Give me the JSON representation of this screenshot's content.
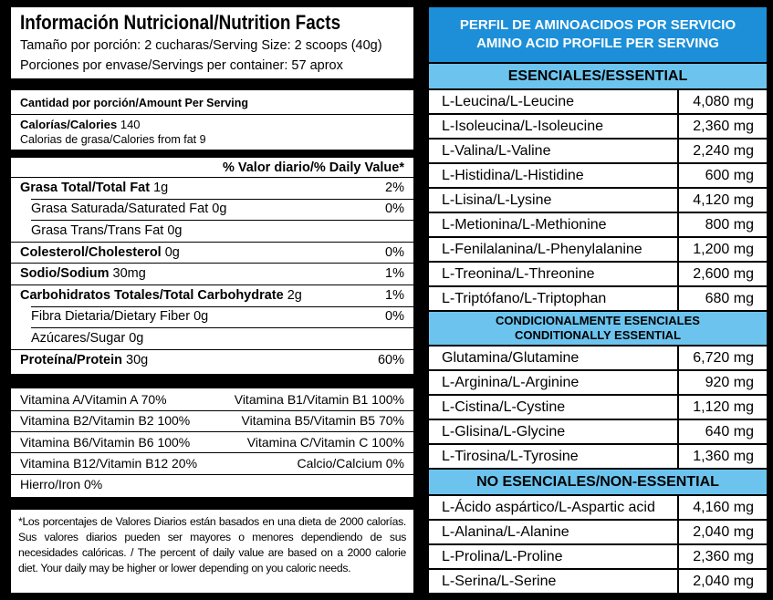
{
  "nutrition_facts": {
    "title": "Información Nutricional/Nutrition Facts",
    "serving_size": "Tamaño por porción: 2 cucharas/Serving Size: 2 scoops (40g)",
    "servings_per_container": "Porciones por envase/Servings per container: 57 aprox",
    "amount_per_serving": "Cantidad por porción/Amount Per Serving",
    "calories": {
      "label": "Calorías/Calories",
      "value": "140"
    },
    "calories_from_fat": "Calorias de grasa/Calories from fat 9",
    "daily_value_header": "% Valor diario/% Daily Value*",
    "nutrients": [
      {
        "label": "Grasa Total/Total Fat",
        "amount": "1g",
        "dv": "2%",
        "sub": [
          {
            "text": "Grasa Saturada/Saturated Fat 0g",
            "dv": "0%"
          },
          {
            "text": "Grasa Trans/Trans Fat 0g"
          }
        ]
      },
      {
        "label": "Colesterol/Cholesterol",
        "amount": "0g",
        "dv": "0%",
        "sub": []
      },
      {
        "label": "Sodio/Sodium",
        "amount": "30mg",
        "dv": "1%",
        "sub": []
      },
      {
        "label": "Carbohidratos Totales/Total Carbohydrate",
        "amount": "2g",
        "dv": "1%",
        "sub": [
          {
            "text": "Fibra Dietaria/Dietary Fiber 0g",
            "dv": "0%"
          },
          {
            "text": "Azúcares/Sugar 0g"
          }
        ]
      },
      {
        "label": "Proteína/Protein",
        "amount": "30g",
        "dv": "60%",
        "sub": []
      }
    ],
    "vitamins": [
      [
        "Vitamina A/Vitamin A 70%",
        "Vitamina B1/Vitamin B1 100%"
      ],
      [
        "Vitamina B2/Vitamin B2 100%",
        "Vitamina B5/Vitamin B5 70%"
      ],
      [
        "Vitamina B6/Vitamin B6 100%",
        "Vitamina C/Vitamin C 100%"
      ],
      [
        "Vitamina B12/Vitamin B12 20%",
        "Calcio/Calcium 0%"
      ],
      [
        "Hierro/Iron 0%"
      ]
    ],
    "footnote": "*Los porcentajes de Valores Diarios están basados en una dieta de 2000 calorías. Sus valores diarios pueden ser mayores o menores dependiendo de sus necesidades calóricas. / The percent of daily value are based on a 2000 calorie diet. Your daily may be higher or lower  depending on you caloric needs."
  },
  "amino_profile": {
    "title": [
      "PERFIL DE AMINOACIDOS POR SERVICIO",
      "AMINO ACID PROFILE PER SERVING"
    ],
    "sections": [
      {
        "title": [
          "ESENCIALES/ESSENTIAL"
        ],
        "items": [
          {
            "name": "L-Leucina/L-Leucine",
            "amount": "4,080 mg"
          },
          {
            "name": "L-Isoleucina/L-Isoleucine",
            "amount": "2,360 mg"
          },
          {
            "name": "L-Valina/L-Valine",
            "amount": "2,240 mg"
          },
          {
            "name": "L-Histidina/L-Histidine",
            "amount": "600 mg"
          },
          {
            "name": "L-Lisina/L-Lysine",
            "amount": "4,120 mg"
          },
          {
            "name": "L-Metionina/L-Methionine",
            "amount": "800 mg"
          },
          {
            "name": "L-Fenilalanina/L-Phenylalanine",
            "amount": "1,200 mg"
          },
          {
            "name": "L-Treonina/L-Threonine",
            "amount": "2,600 mg"
          },
          {
            "name": "L-Triptófano/L-Triptophan",
            "amount": "680 mg"
          }
        ]
      },
      {
        "title": [
          "CONDICIONALMENTE ESENCIALES",
          "CONDITIONALLY ESSENTIAL"
        ],
        "items": [
          {
            "name": "Glutamina/Glutamine",
            "amount": "6,720 mg"
          },
          {
            "name": "L-Arginina/L-Arginine",
            "amount": "920 mg"
          },
          {
            "name": "L-Cistina/L-Cystine",
            "amount": "1,120 mg"
          },
          {
            "name": "L-Glisina/L-Glycine",
            "amount": "640 mg"
          },
          {
            "name": "L-Tirosina/L-Tyrosine",
            "amount": "1,360 mg"
          }
        ]
      },
      {
        "title": [
          "NO ESENCIALES/NON-ESSENTIAL"
        ],
        "items": [
          {
            "name": "L-Ácido aspártico/L-Aspartic acid",
            "amount": "4,160 mg"
          },
          {
            "name": "L-Alanina/L-Alanine",
            "amount": "2,040 mg"
          },
          {
            "name": "L-Prolina/L-Proline",
            "amount": "2,360 mg"
          },
          {
            "name": "L-Serina/L-Serine",
            "amount": "2,040 mg"
          }
        ]
      }
    ]
  }
}
